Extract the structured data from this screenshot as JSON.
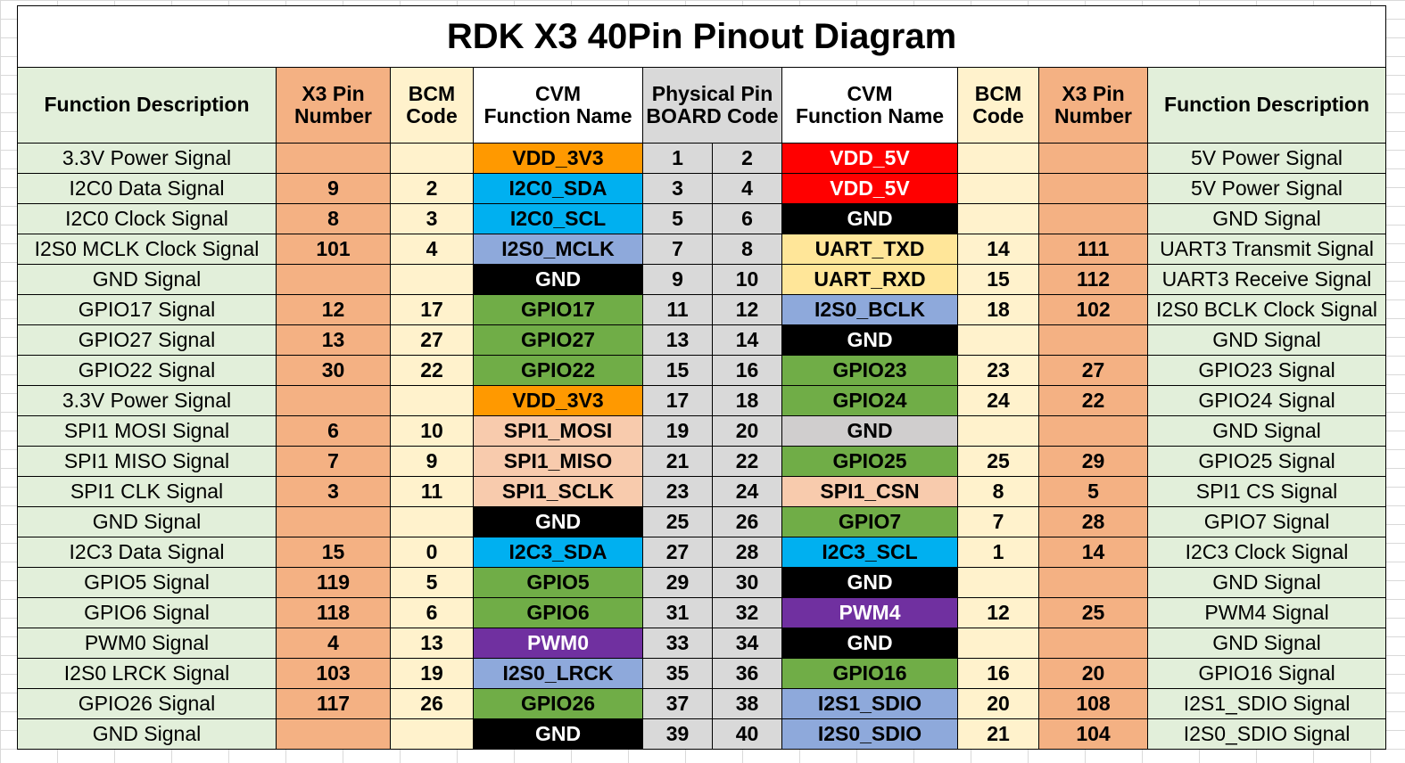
{
  "title": "RDK X3 40Pin Pinout Diagram",
  "headers": {
    "function_description": "Function Description",
    "x3_pin_line1": "X3 Pin",
    "x3_pin_line2": "Number",
    "bcm_line1": "BCM",
    "bcm_line2": "Code",
    "cvm_line1": "CVM",
    "cvm_line2": "Function Name",
    "physical_line1": "Physical Pin",
    "physical_line2": "BOARD Code"
  },
  "colors": {
    "power_3v3": "#ff9900",
    "power_5v": "#ff0000",
    "i2c": "#00b0f0",
    "i2s": "#8ea9db",
    "gnd": "#000000",
    "gnd_light": "#d0cece",
    "uart": "#ffe699",
    "gpio": "#70ad47",
    "spi": "#f8cbad",
    "pwm": "#7030a0"
  },
  "rows": [
    {
      "left_desc": "3.3V Power Signal",
      "left_x3": "",
      "left_bcm": "",
      "left_fn": "VDD_3V3",
      "left_color": "power_3v3",
      "pin_left": "1",
      "pin_right": "2",
      "right_fn": "VDD_5V",
      "right_color": "power_5v",
      "right_bcm": "",
      "right_x3": "",
      "right_desc": "5V Power Signal"
    },
    {
      "left_desc": "I2C0 Data Signal",
      "left_x3": "9",
      "left_bcm": "2",
      "left_fn": "I2C0_SDA",
      "left_color": "i2c",
      "pin_left": "3",
      "pin_right": "4",
      "right_fn": "VDD_5V",
      "right_color": "power_5v",
      "right_bcm": "",
      "right_x3": "",
      "right_desc": "5V Power Signal"
    },
    {
      "left_desc": "I2C0 Clock Signal",
      "left_x3": "8",
      "left_bcm": "3",
      "left_fn": "I2C0_SCL",
      "left_color": "i2c",
      "pin_left": "5",
      "pin_right": "6",
      "right_fn": "GND",
      "right_color": "gnd",
      "right_bcm": "",
      "right_x3": "",
      "right_desc": "GND  Signal"
    },
    {
      "left_desc": "I2S0 MCLK Clock Signal",
      "left_x3": "101",
      "left_bcm": "4",
      "left_fn": "I2S0_MCLK",
      "left_color": "i2s",
      "pin_left": "7",
      "pin_right": "8",
      "right_fn": "UART_TXD",
      "right_color": "uart",
      "right_bcm": "14",
      "right_x3": "111",
      "right_desc": "UART3 Transmit Signal"
    },
    {
      "left_desc": "GND  Signal",
      "left_x3": "",
      "left_bcm": "",
      "left_fn": "GND",
      "left_color": "gnd",
      "pin_left": "9",
      "pin_right": "10",
      "right_fn": "UART_RXD",
      "right_color": "uart",
      "right_bcm": "15",
      "right_x3": "112",
      "right_desc": "UART3 Receive Signal"
    },
    {
      "left_desc": "GPIO17 Signal",
      "left_x3": "12",
      "left_bcm": "17",
      "left_fn": "GPIO17",
      "left_color": "gpio",
      "pin_left": "11",
      "pin_right": "12",
      "right_fn": "I2S0_BCLK",
      "right_color": "i2s",
      "right_bcm": "18",
      "right_x3": "102",
      "right_desc": "I2S0 BCLK Clock Signal"
    },
    {
      "left_desc": "GPIO27 Signal",
      "left_x3": "13",
      "left_bcm": "27",
      "left_fn": "GPIO27",
      "left_color": "gpio",
      "pin_left": "13",
      "pin_right": "14",
      "right_fn": "GND",
      "right_color": "gnd",
      "right_bcm": "",
      "right_x3": "",
      "right_desc": "GND  Signal"
    },
    {
      "left_desc": "GPIO22 Signal",
      "left_x3": "30",
      "left_bcm": "22",
      "left_fn": "GPIO22",
      "left_color": "gpio",
      "pin_left": "15",
      "pin_right": "16",
      "right_fn": "GPIO23",
      "right_color": "gpio",
      "right_bcm": "23",
      "right_x3": "27",
      "right_desc": "GPIO23 Signal"
    },
    {
      "left_desc": "3.3V Power Signal",
      "left_x3": "",
      "left_bcm": "",
      "left_fn": "VDD_3V3",
      "left_color": "power_3v3",
      "pin_left": "17",
      "pin_right": "18",
      "right_fn": "GPIO24",
      "right_color": "gpio",
      "right_bcm": "24",
      "right_x3": "22",
      "right_desc": "GPIO24 Signal"
    },
    {
      "left_desc": "SPI1 MOSI Signal",
      "left_x3": "6",
      "left_bcm": "10",
      "left_fn": "SPI1_MOSI",
      "left_color": "spi",
      "pin_left": "19",
      "pin_right": "20",
      "right_fn": "GND",
      "right_color": "gnd_light",
      "right_bcm": "",
      "right_x3": "",
      "right_desc": "GND  Signal"
    },
    {
      "left_desc": "SPI1 MISO Signal",
      "left_x3": "7",
      "left_bcm": "9",
      "left_fn": "SPI1_MISO",
      "left_color": "spi",
      "pin_left": "21",
      "pin_right": "22",
      "right_fn": "GPIO25",
      "right_color": "gpio",
      "right_bcm": "25",
      "right_x3": "29",
      "right_desc": "GPIO25 Signal"
    },
    {
      "left_desc": "SPI1 CLK Signal",
      "left_x3": "3",
      "left_bcm": "11",
      "left_fn": "SPI1_SCLK",
      "left_color": "spi",
      "pin_left": "23",
      "pin_right": "24",
      "right_fn": "SPI1_CSN",
      "right_color": "spi",
      "right_bcm": "8",
      "right_x3": "5",
      "right_desc": "SPI1 CS Signal"
    },
    {
      "left_desc": "GND  Signal",
      "left_x3": "",
      "left_bcm": "",
      "left_fn": "GND",
      "left_color": "gnd",
      "pin_left": "25",
      "pin_right": "26",
      "right_fn": "GPIO7",
      "right_color": "gpio",
      "right_bcm": "7",
      "right_x3": "28",
      "right_desc": "GPIO7 Signal"
    },
    {
      "left_desc": "I2C3 Data Signal",
      "left_x3": "15",
      "left_bcm": "0",
      "left_fn": "I2C3_SDA",
      "left_color": "i2c",
      "pin_left": "27",
      "pin_right": "28",
      "right_fn": "I2C3_SCL",
      "right_color": "i2c",
      "right_bcm": "1",
      "right_x3": "14",
      "right_desc": "I2C3 Clock Signal"
    },
    {
      "left_desc": "GPIO5 Signal",
      "left_x3": "119",
      "left_bcm": "5",
      "left_fn": "GPIO5",
      "left_color": "gpio",
      "pin_left": "29",
      "pin_right": "30",
      "right_fn": "GND",
      "right_color": "gnd",
      "right_bcm": "",
      "right_x3": "",
      "right_desc": "GND  Signal"
    },
    {
      "left_desc": "GPIO6 Signal",
      "left_x3": "118",
      "left_bcm": "6",
      "left_fn": "GPIO6",
      "left_color": "gpio",
      "pin_left": "31",
      "pin_right": "32",
      "right_fn": "PWM4",
      "right_color": "pwm",
      "right_bcm": "12",
      "right_x3": "25",
      "right_desc": "PWM4 Signal"
    },
    {
      "left_desc": "PWM0 Signal",
      "left_x3": "4",
      "left_bcm": "13",
      "left_fn": "PWM0",
      "left_color": "pwm",
      "pin_left": "33",
      "pin_right": "34",
      "right_fn": "GND",
      "right_color": "gnd",
      "right_bcm": "",
      "right_x3": "",
      "right_desc": "GND  Signal"
    },
    {
      "left_desc": "I2S0 LRCK Signal",
      "left_x3": "103",
      "left_bcm": "19",
      "left_fn": "I2S0_LRCK",
      "left_color": "i2s",
      "pin_left": "35",
      "pin_right": "36",
      "right_fn": "GPIO16",
      "right_color": "gpio",
      "right_bcm": "16",
      "right_x3": "20",
      "right_desc": "GPIO16 Signal"
    },
    {
      "left_desc": "GPIO26 Signal",
      "left_x3": "117",
      "left_bcm": "26",
      "left_fn": "GPIO26",
      "left_color": "gpio",
      "pin_left": "37",
      "pin_right": "38",
      "right_fn": "I2S1_SDIO",
      "right_color": "i2s",
      "right_bcm": "20",
      "right_x3": "108",
      "right_desc": "I2S1_SDIO Signal"
    },
    {
      "left_desc": "GND  Signal",
      "left_x3": "",
      "left_bcm": "",
      "left_fn": "GND",
      "left_color": "gnd",
      "pin_left": "39",
      "pin_right": "40",
      "right_fn": "I2S0_SDIO",
      "right_color": "i2s",
      "right_bcm": "21",
      "right_x3": "104",
      "right_desc": "I2S0_SDIO Signal"
    }
  ]
}
